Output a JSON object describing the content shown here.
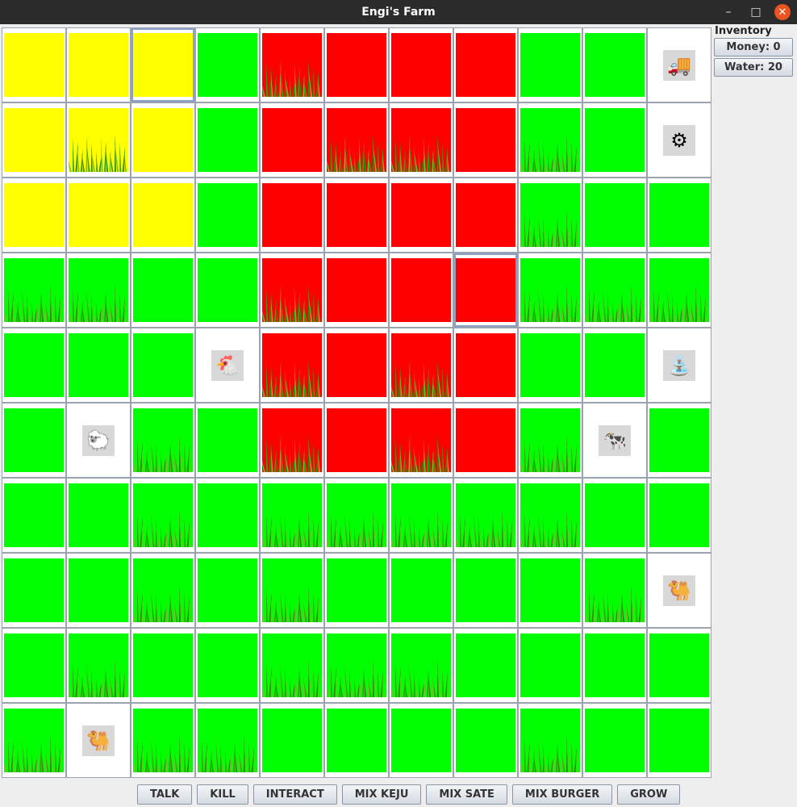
{
  "window": {
    "title": "Engi's Farm"
  },
  "inventory": {
    "label": "Inventory",
    "money": "Money: 0",
    "water": "Water: 20"
  },
  "actions": [
    "TALK",
    "KILL",
    "INTERACT",
    "MIX KEJU",
    "MIX SATE",
    "MIX BURGER",
    "GROW"
  ],
  "colors": {
    "yellow": "#ffff00",
    "green": "#00ff00",
    "red": "#ff0000",
    "grass": "#3aa010"
  },
  "legend_codes": {
    "Y": "yellow land",
    "G": "green land",
    "R": "red land",
    "g": "green land with grass",
    "y": "yellow land with grass",
    "r": "red land with grass",
    "W": "empty white tile",
    "T": "truck",
    "M": "mixer",
    "C": "chicken",
    "E": "well",
    "S": "sheep",
    "O": "cow",
    "K": "camel"
  },
  "grid": [
    [
      "Y",
      "Y",
      "Y",
      "G",
      "r",
      "R",
      "R",
      "R",
      "G",
      "G",
      "T"
    ],
    [
      "Y",
      "y",
      "Y",
      "G",
      "R",
      "r",
      "r",
      "R",
      "g",
      "G",
      "M"
    ],
    [
      "Y",
      "Y",
      "Y",
      "G",
      "R",
      "R",
      "R",
      "R",
      "g",
      "G",
      "G"
    ],
    [
      "g",
      "g",
      "G",
      "G",
      "r",
      "R",
      "R",
      "R",
      "g",
      "g",
      "g"
    ],
    [
      "G",
      "G",
      "G",
      "C",
      "r",
      "R",
      "r",
      "R",
      "G",
      "G",
      "E"
    ],
    [
      "G",
      "S",
      "g",
      "G",
      "r",
      "R",
      "r",
      "R",
      "g",
      "O",
      "G"
    ],
    [
      "G",
      "G",
      "g",
      "G",
      "g",
      "g",
      "g",
      "g",
      "g",
      "G",
      "G"
    ],
    [
      "G",
      "G",
      "g",
      "G",
      "g",
      "G",
      "G",
      "G",
      "G",
      "g",
      "K"
    ],
    [
      "G",
      "g",
      "G",
      "G",
      "g",
      "g",
      "g",
      "G",
      "G",
      "G",
      "G"
    ],
    [
      "g",
      "K",
      "g",
      "g",
      "G",
      "G",
      "G",
      "G",
      "g",
      "G",
      "G"
    ]
  ],
  "selected_cells": [
    "0,2",
    "3,7"
  ],
  "sprites": {
    "T": {
      "name": "truck",
      "glyph": "🚚"
    },
    "M": {
      "name": "mixer",
      "glyph": "⚙"
    },
    "C": {
      "name": "chicken",
      "glyph": "🐔"
    },
    "E": {
      "name": "well",
      "glyph": "⛲"
    },
    "S": {
      "name": "sheep",
      "glyph": "🐑"
    },
    "O": {
      "name": "cow",
      "glyph": "🐄"
    },
    "K": {
      "name": "camel",
      "glyph": "🐫"
    }
  }
}
